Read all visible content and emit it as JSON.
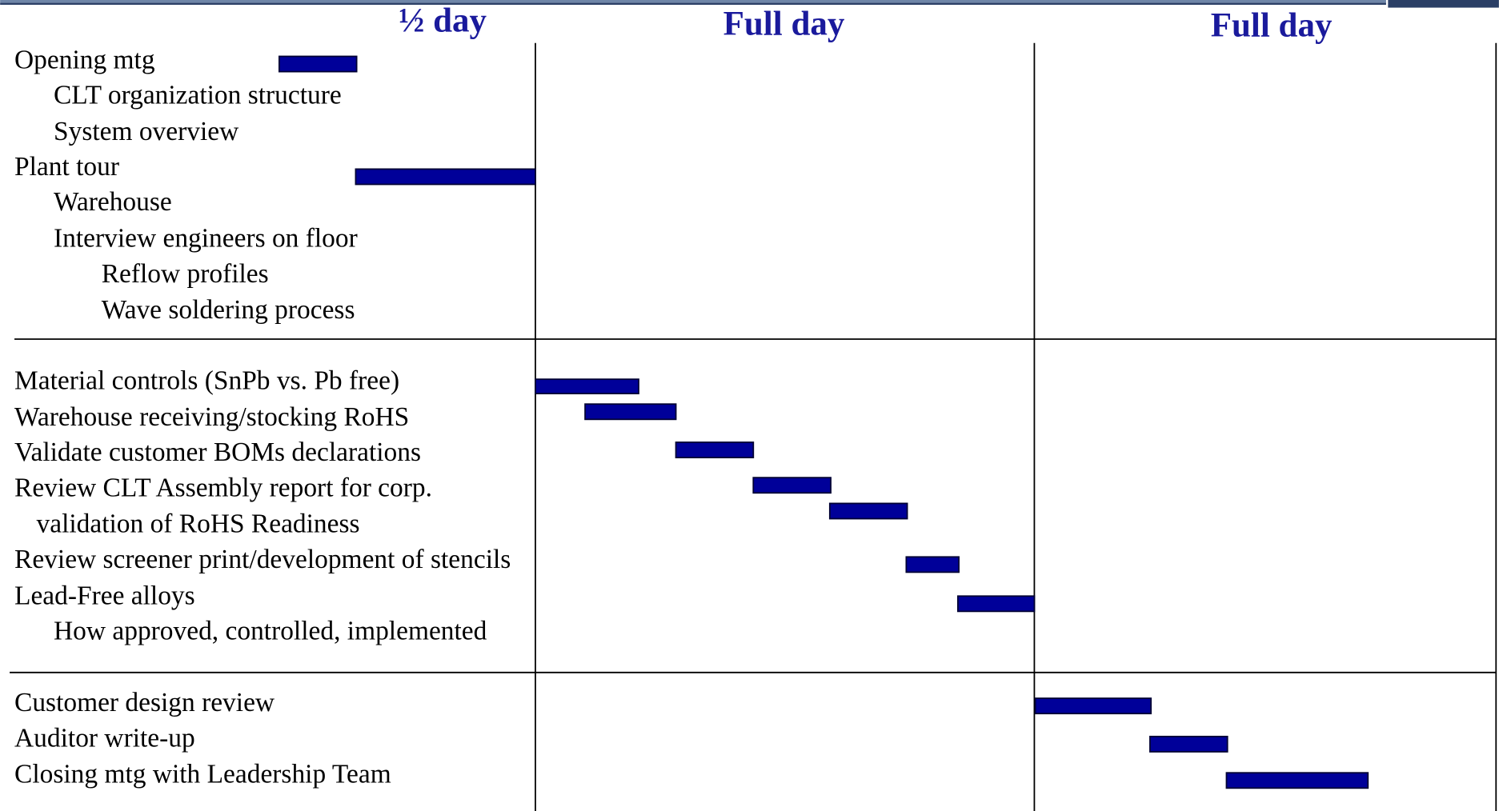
{
  "columns": [
    "½ day",
    "Full day",
    "Full day"
  ],
  "tasks": [
    {
      "label": "Opening mtg"
    },
    {
      "label": "CLT organization structure"
    },
    {
      "label": "System overview"
    },
    {
      "label": "Plant tour"
    },
    {
      "label": "Warehouse"
    },
    {
      "label": "Interview engineers on floor"
    },
    {
      "label": "Reflow profiles"
    },
    {
      "label": "Wave soldering process"
    },
    {
      "label": "Material controls (SnPb vs. Pb free)"
    },
    {
      "label": "Warehouse receiving/stocking RoHS"
    },
    {
      "label": "Validate customer BOMs declarations"
    },
    {
      "label": "Review CLT Assembly report for corp."
    },
    {
      "label": "validation of  RoHS Readiness"
    },
    {
      "label": "Review screener print/development of stencils"
    },
    {
      "label": "Lead-Free alloys"
    },
    {
      "label": "How approved, controlled, implemented"
    },
    {
      "label": "Customer design review"
    },
    {
      "label": "Auditor write-up"
    },
    {
      "label": "Closing mtg with Leadership Team"
    }
  ]
}
